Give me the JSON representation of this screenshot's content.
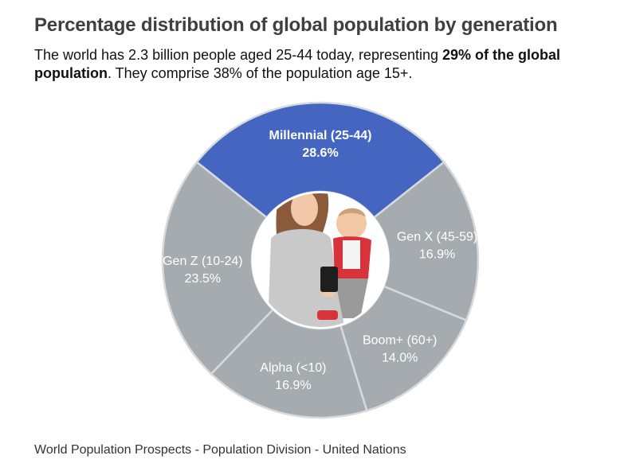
{
  "header": {
    "title": "Percentage distribution of global population by generation",
    "subtitle_pre": "The world has 2.3 billion people aged 25-44 today, representing ",
    "subtitle_bold": "29% of the global population",
    "subtitle_post": ". They comprise 38% of the population age 15+."
  },
  "source": "World Population Prospects - Population Division - United Nations",
  "colors": {
    "highlight": "#4466c0",
    "slice": "#a6abb0",
    "border": "#d7dadd",
    "label_light": "#ffffff"
  },
  "center_image": "photo of a woman holding a baby and a smartphone",
  "chart_data": {
    "type": "pie",
    "style": "donut",
    "highlighted": "Millennial (25-44)",
    "slices": [
      {
        "label": "Millennial (25-44)",
        "value": 28.6,
        "display": "28.6%"
      },
      {
        "label": "Gen X (45-59)",
        "value": 16.9,
        "display": "16.9%"
      },
      {
        "label": "Boom+ (60+)",
        "value": 14.0,
        "display": "14.0%"
      },
      {
        "label": "Alpha (<10)",
        "value": 16.9,
        "display": "16.9%"
      },
      {
        "label": "Gen Z (10-24)",
        "value": 23.5,
        "display": "23.5%"
      }
    ]
  }
}
